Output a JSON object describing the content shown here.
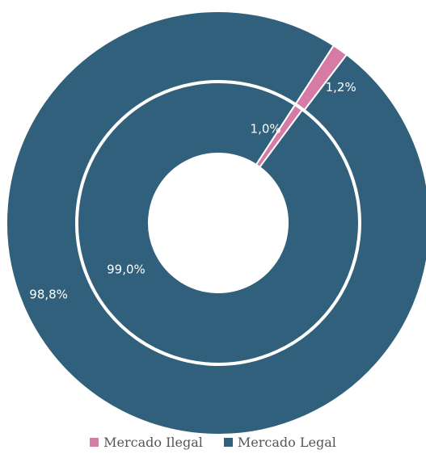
{
  "chart_data": {
    "type": "pie",
    "subtype": "nested-donut",
    "colors": {
      "Mercado Ilegal": "#d67ba6",
      "Mercado Legal": "#30607b"
    },
    "rings": [
      {
        "ring": "outer",
        "slices": [
          {
            "name": "Mercado Ilegal",
            "value": 1.2,
            "label": "1,2%"
          },
          {
            "name": "Mercado Legal",
            "value": 98.8,
            "label": "98,8%"
          }
        ]
      },
      {
        "ring": "inner",
        "slices": [
          {
            "name": "Mercado Ilegal",
            "value": 1.0,
            "label": "1,0%"
          },
          {
            "name": "Mercado Legal",
            "value": 99.0,
            "label": "99,0%"
          }
        ]
      }
    ],
    "legend": {
      "position": "bottom",
      "items": [
        "Mercado Ilegal",
        "Mercado Legal"
      ]
    }
  }
}
